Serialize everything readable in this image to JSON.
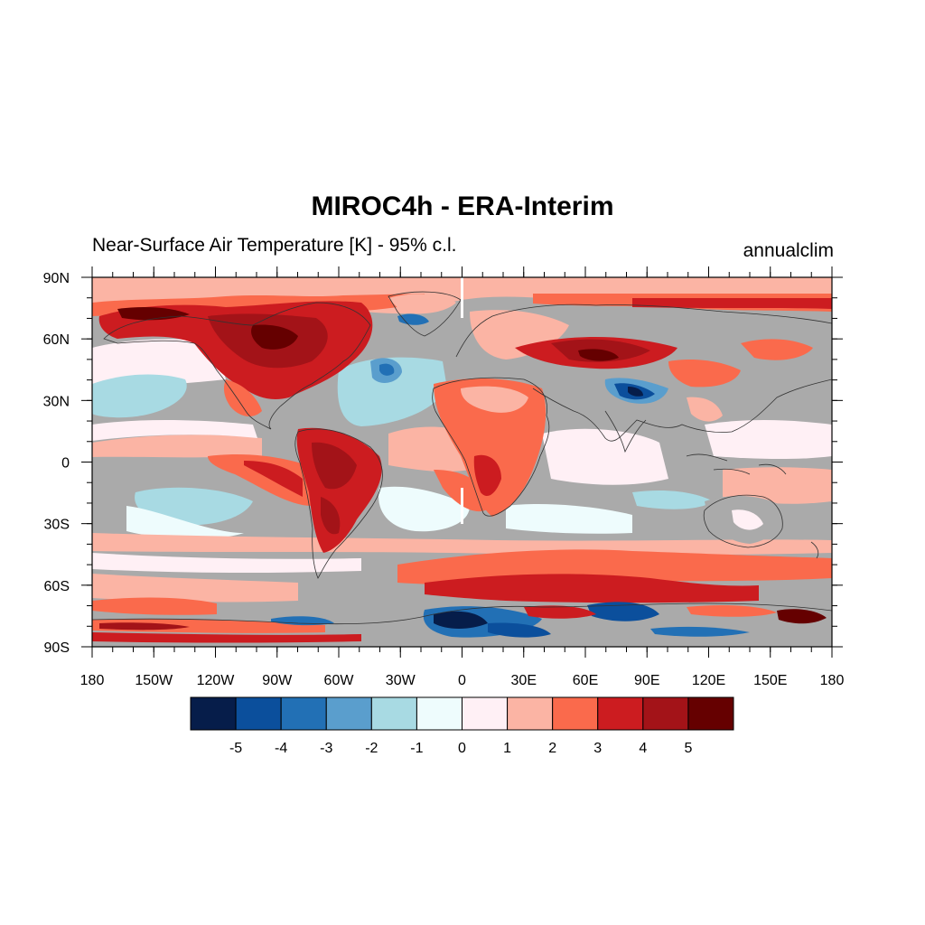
{
  "title": "MIROC4h - ERA-Interim",
  "subtitle": "Near-Surface Air Temperature [K] - 95% c.l.",
  "right_label": "annualclim",
  "map": {
    "projection": "cylindrical-equidistant",
    "lon_range": [
      -180,
      180
    ],
    "lat_range": [
      -90,
      90
    ],
    "lon_ticks": [
      {
        "v": -180,
        "label": "180"
      },
      {
        "v": -150,
        "label": "150W"
      },
      {
        "v": -120,
        "label": "120W"
      },
      {
        "v": -90,
        "label": "90W"
      },
      {
        "v": -60,
        "label": "60W"
      },
      {
        "v": -30,
        "label": "30W"
      },
      {
        "v": 0,
        "label": "0"
      },
      {
        "v": 30,
        "label": "30E"
      },
      {
        "v": 60,
        "label": "60E"
      },
      {
        "v": 90,
        "label": "90E"
      },
      {
        "v": 120,
        "label": "120E"
      },
      {
        "v": 150,
        "label": "150E"
      },
      {
        "v": 180,
        "label": "180"
      }
    ],
    "lat_ticks": [
      {
        "v": 90,
        "label": "90N"
      },
      {
        "v": 60,
        "label": "60N"
      },
      {
        "v": 30,
        "label": "30N"
      },
      {
        "v": 0,
        "label": "0"
      },
      {
        "v": -30,
        "label": "30S"
      },
      {
        "v": -60,
        "label": "60S"
      },
      {
        "v": -90,
        "label": "90S"
      }
    ],
    "non_significant_color": "#aaaaaa"
  },
  "colorbar": {
    "colors": [
      "#061d4a",
      "#0b4f9c",
      "#2270b5",
      "#5a9ecd",
      "#a8dae3",
      "#eefcfd",
      "#fff0f5",
      "#fbb4a4",
      "#fa6a4c",
      "#cc1c20",
      "#a31318",
      "#650000"
    ],
    "labels": [
      "-5",
      "-4",
      "-3",
      "-2",
      "-1",
      "0",
      "1",
      "2",
      "3",
      "4",
      "5"
    ]
  }
}
